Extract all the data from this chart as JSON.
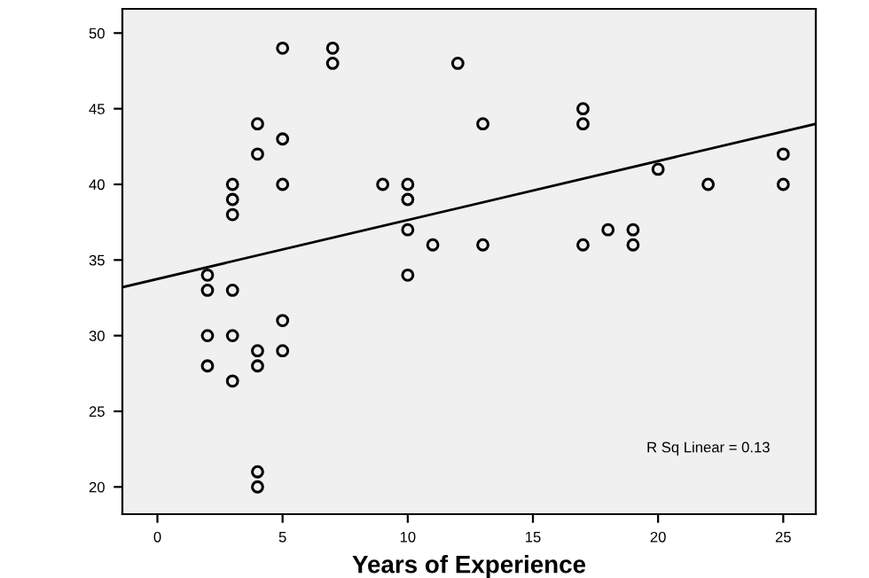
{
  "chart_data": {
    "type": "scatter",
    "xlabel": "Years of Experience",
    "xlim": [
      -1.4,
      26.3
    ],
    "ylim": [
      18.2,
      51.6
    ],
    "xticks": [
      0,
      5,
      10,
      15,
      20,
      25
    ],
    "yticks": [
      20,
      25,
      30,
      35,
      40,
      45,
      50
    ],
    "grid": false,
    "series": [
      {
        "color": "#000000",
        "marker": "circle",
        "x": [
          2,
          2,
          2,
          2,
          3,
          3,
          3,
          3,
          3,
          3,
          4,
          4,
          4,
          4,
          4,
          4,
          5,
          5,
          5,
          5,
          5,
          7,
          7,
          9,
          10,
          10,
          10,
          10,
          11,
          12,
          13,
          13,
          17,
          17,
          17,
          18,
          19,
          19,
          20,
          22,
          25,
          25
        ],
        "values": [
          34,
          33,
          30,
          28,
          40,
          39,
          38,
          33,
          30,
          27,
          44,
          42,
          29,
          28,
          21,
          20,
          49,
          43,
          40,
          31,
          29,
          49,
          48,
          40,
          40,
          39,
          37,
          34,
          36,
          48,
          44,
          36,
          45,
          44,
          36,
          37,
          37,
          36,
          41,
          40,
          42,
          40
        ]
      },
      {
        "type": "line",
        "color": "#000000",
        "x": [
          -1.4,
          26.3
        ],
        "values": [
          33.2,
          44.0
        ]
      }
    ],
    "annotations": [
      "R Sq Linear = 0.13"
    ]
  }
}
